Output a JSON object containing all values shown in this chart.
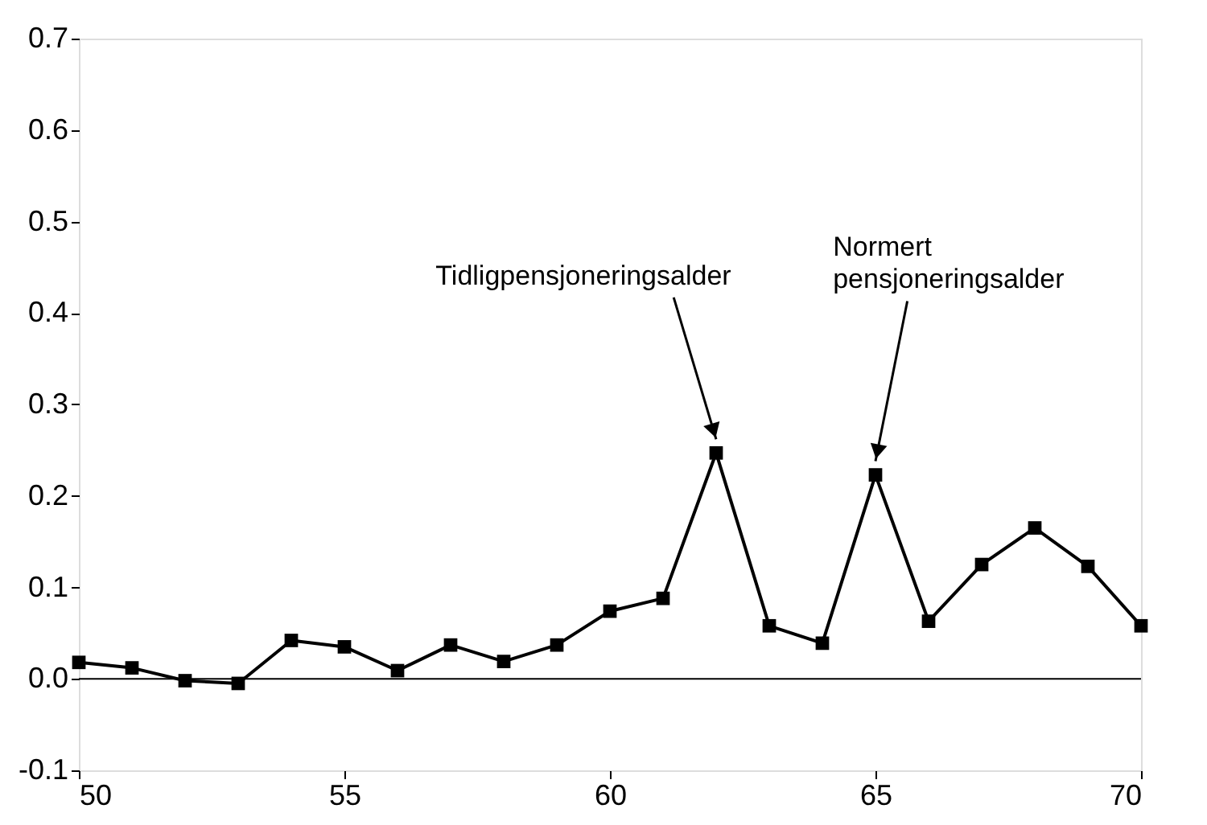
{
  "chart_data": {
    "type": "line",
    "x": [
      50,
      51,
      52,
      53,
      54,
      55,
      56,
      57,
      58,
      59,
      60,
      61,
      62,
      63,
      64,
      65,
      66,
      67,
      68,
      69,
      70
    ],
    "series": [
      {
        "color": "#000000",
        "values": [
          0.018,
          0.012,
          -0.002,
          -0.005,
          0.042,
          0.035,
          0.009,
          0.037,
          0.019,
          0.037,
          0.074,
          0.088,
          0.247,
          0.058,
          0.039,
          0.223,
          0.063,
          0.125,
          0.165,
          0.123,
          0.058
        ]
      }
    ],
    "xlim": [
      50,
      70
    ],
    "xticks": [
      50,
      55,
      60,
      65,
      70
    ],
    "ylim": [
      -0.1,
      0.7
    ],
    "yticks": [
      {
        "value": -0.1,
        "label": "-0.1"
      },
      {
        "value": 0,
        "label": "0.0"
      },
      0.1,
      0.2,
      0.3,
      0.4,
      0.5,
      0.6,
      0.7
    ],
    "ref_lines": [
      {
        "axis": "y",
        "value": 0,
        "color": "#000000"
      }
    ],
    "annotations": [
      {
        "text": "Tidligpensjoneringsalder",
        "x": 62,
        "y": 0.247
      },
      {
        "text": "Normert\npensjoneringsalder",
        "x": 65,
        "y": 0.223
      }
    ],
    "marker": "square",
    "line_style": "solid",
    "grid": false
  }
}
